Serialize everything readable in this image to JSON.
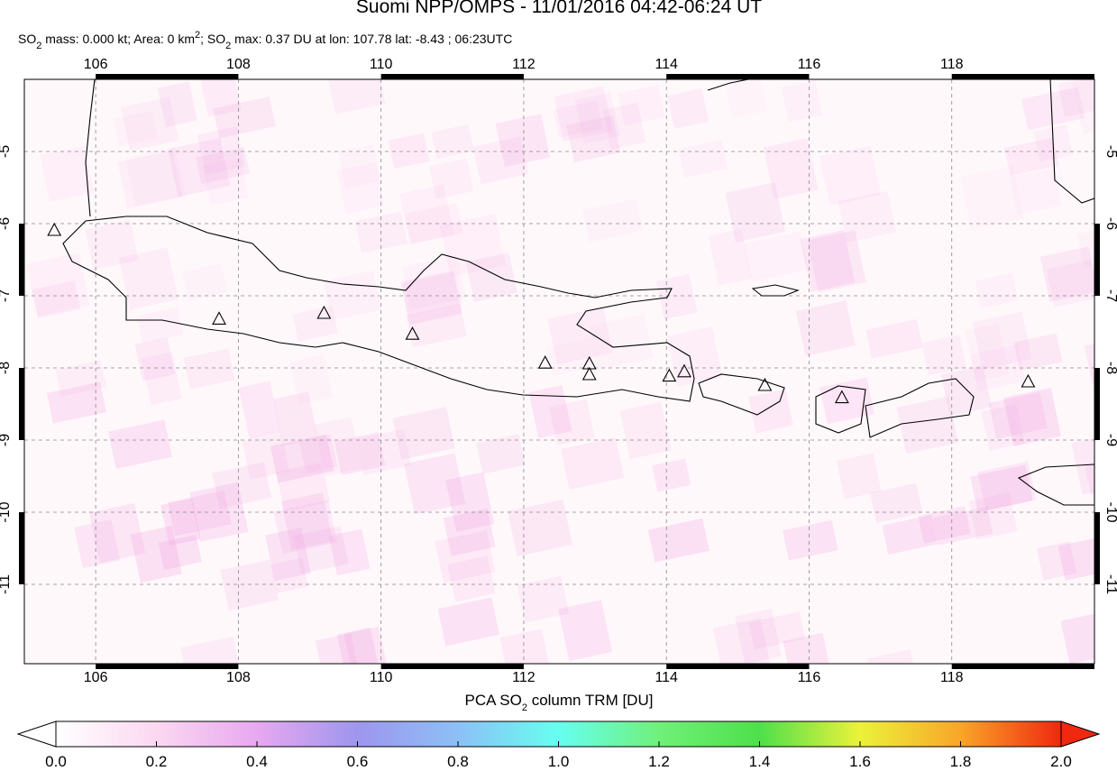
{
  "header": {
    "title": "Suomi NPP/OMPS - 11/01/2016 04:42-06:24 UT",
    "subtitle": [
      "SO",
      "2",
      " mass: 0.000 kt; Area: 0 km",
      "2",
      "; SO",
      "2",
      " max: 0.37 DU at lon: 107.78 lat: -8.43 ; 06:23UTC"
    ]
  },
  "map": {
    "type": "map",
    "xlim": [
      105,
      120
    ],
    "ylim": [
      -12.1,
      -4
    ],
    "xticks": [
      106,
      108,
      110,
      112,
      114,
      116,
      118
    ],
    "yticks": [
      -5,
      -6,
      -7,
      -8,
      -9,
      -10,
      -11
    ],
    "grid": true,
    "volcanoes": {
      "lon": [
        105.42,
        107.73,
        109.2,
        110.44,
        112.3,
        112.92,
        112.92,
        114.04,
        114.25,
        115.38,
        116.46,
        119.07
      ],
      "lat": [
        -6.1,
        -7.33,
        -7.25,
        -7.54,
        -7.94,
        -7.95,
        -8.1,
        -8.12,
        -8.06,
        -8.25,
        -8.42,
        -8.2
      ]
    }
  },
  "colorbar": {
    "label": [
      "PCA SO",
      "2",
      " column TRM [DU]"
    ],
    "lim": [
      0,
      2
    ],
    "ticks": [
      {
        "value": 0,
        "label": "0.0"
      },
      {
        "value": 0.2,
        "label": "0.2"
      },
      {
        "value": 0.4,
        "label": "0.4"
      },
      {
        "value": 0.6,
        "label": "0.6"
      },
      {
        "value": 0.8,
        "label": "0.8"
      },
      {
        "value": 1,
        "label": "1.0"
      },
      {
        "value": 1.2,
        "label": "1.2"
      },
      {
        "value": 1.4,
        "label": "1.4"
      },
      {
        "value": 1.6,
        "label": "1.6"
      },
      {
        "value": 1.8,
        "label": "1.8"
      },
      {
        "value": 2,
        "label": "2.0"
      }
    ]
  }
}
